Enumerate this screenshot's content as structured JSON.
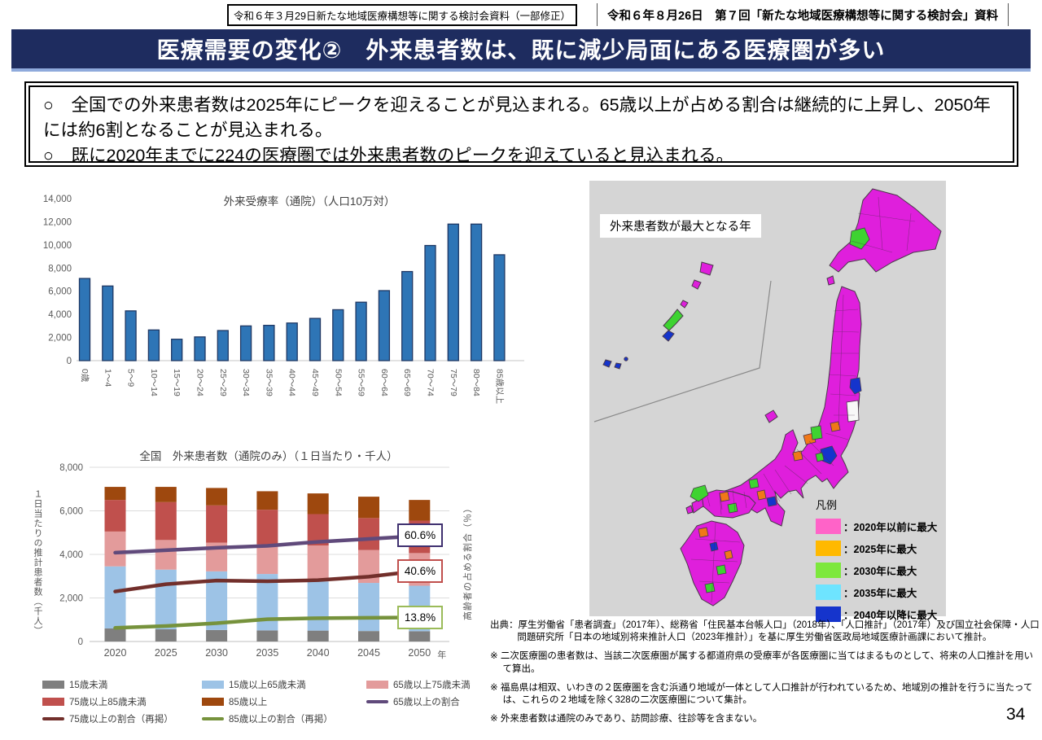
{
  "header": {
    "left_note": "令和６年３月29日新たな地域医療構想等に関する検討会資料（一部修正）",
    "right_note": "令和６年８月26日　第７回「新たな地域医療構想等に関する検討会」資料"
  },
  "title": "医療需要の変化②　外来患者数は、既に減少局面にある医療圏が多い",
  "summary": {
    "bullet1": "○　全国での外来患者数は2025年にピークを迎えることが見込まれる。65歳以上が占める割合は継続的に上昇し、2050年には約6割となることが見込まれる。",
    "bullet2": "○　既に2020年までに224の医療圏では外来患者数のピークを迎えていると見込まれる。"
  },
  "chart_data": [
    {
      "type": "bar",
      "title": "外来受療率（通院）（人口10万対）",
      "categories": [
        "0歳",
        "1～4",
        "5～9",
        "10～14",
        "15～19",
        "20～24",
        "25～29",
        "30～34",
        "35～39",
        "40～44",
        "45～49",
        "50～54",
        "55～59",
        "60～64",
        "65～69",
        "70～74",
        "75～79",
        "80～84",
        "85歳以上"
      ],
      "values": [
        7100,
        6450,
        4300,
        2650,
        1850,
        2050,
        2600,
        3000,
        3050,
        3250,
        3650,
        4400,
        5050,
        6050,
        7700,
        9950,
        11800,
        11800,
        9150
      ],
      "xlabel": "",
      "ylabel": "",
      "ylim": [
        0,
        14000
      ],
      "ytick_step": 2000,
      "grid": false,
      "bar_color": "#2E75B6",
      "bar_border": "#1F3864"
    },
    {
      "type": "stacked-bar-line",
      "title": "全国　外来患者数（通院のみ）（１日当たり・千人）",
      "ylabel_left": "１日当たりの推計患者数（千人）",
      "ylabel_right": "高齢者の占める割合（％）",
      "xlabel_suffix": "年",
      "categories": [
        "2020",
        "2025",
        "2030",
        "2035",
        "2040",
        "2045",
        "2050"
      ],
      "ylim_left": [
        0,
        8000
      ],
      "ylim_right": [
        0,
        100
      ],
      "ytick_step": 2000,
      "grid": true,
      "series": [
        {
          "name": "15歳未満",
          "color": "#7F7F7F",
          "values": [
            600,
            560,
            530,
            510,
            500,
            480,
            470
          ]
        },
        {
          "name": "15歳以上65歳未満",
          "color": "#9DC3E6",
          "values": [
            2850,
            2740,
            2690,
            2590,
            2260,
            2210,
            2090
          ]
        },
        {
          "name": "65歳以上75歳未満",
          "color": "#E39B9B",
          "values": [
            1600,
            1360,
            1320,
            1360,
            1650,
            1510,
            1500
          ]
        },
        {
          "name": "75歳以上85歳未満",
          "color": "#C0504D",
          "values": [
            1450,
            1740,
            1710,
            1590,
            1440,
            1470,
            1490
          ]
        },
        {
          "name": "85歳以上",
          "color": "#9E480E",
          "values": [
            600,
            700,
            800,
            850,
            950,
            980,
            950
          ]
        }
      ],
      "lines": [
        {
          "name": "65歳以上の割合",
          "color": "#604A7B",
          "values": [
            51.0,
            52.4,
            53.8,
            54.9,
            57.2,
            58.9,
            60.6
          ],
          "label": "60.6%",
          "label_border": "#403170"
        },
        {
          "name": "75歳以上の割合（再掲）",
          "color": "#722F2B",
          "values": [
            28.7,
            32.9,
            35.0,
            34.6,
            35.2,
            37.2,
            40.6
          ],
          "label": "40.6%",
          "label_border": "#C0504D"
        },
        {
          "name": "85歳以上の割合（再掲）",
          "color": "#76923C",
          "values": [
            7.8,
            8.9,
            10.5,
            12.8,
            13.4,
            13.6,
            13.8
          ],
          "label": "13.8%",
          "label_border": "#9BBB59"
        }
      ]
    }
  ],
  "map": {
    "label": "外来患者数が最大となる年",
    "legend_title": "凡例",
    "legend": [
      {
        "label": "：2020年以前に最大",
        "color": "#FF63C8"
      },
      {
        "label": "：2025年に最大",
        "color": "#FFB900"
      },
      {
        "label": "：2030年に最大",
        "color": "#7DE83C"
      },
      {
        "label": "：2035年に最大",
        "color": "#6EE4FF"
      },
      {
        "label": "：2040年以降に最大",
        "color": "#1534CC"
      }
    ],
    "region_colors": {
      "pink": "#DF1FDC",
      "orange": "#F07818",
      "green": "#3ED331",
      "cyan": "#6EE4FF",
      "blue": "#1534CC",
      "white": "#F8F8F8",
      "sea": "#D5D5D5",
      "border": "#4A3A4A"
    }
  },
  "notes": {
    "source": "出典：厚生労働省「患者調査」（2017年）、総務省「住民基本台帳人口」（2018年）、「人口推計」（2017年）及び国立社会保障・人口問題研究所「日本の地域別将来推計人口（2023年推計）」を基に厚生労働省医政局地域医療計画課において推計。",
    "note1": "※ 二次医療圏の患者数は、当該二次医療圏が属する都道府県の受療率が各医療圏に当てはまるものとして、将来の人口推計を用いて算出。",
    "note2": "※ 福島県は相双、いわきの２医療圏を含む浜通り地域が一体として人口推計が行われているため、地域別の推計を行うに当たっては、これらの２地域を除く328の二次医療圏について集計。",
    "note3": "※ 外来患者数は通院のみであり、訪問診療、往診等を含まない。"
  },
  "page_number": "34"
}
